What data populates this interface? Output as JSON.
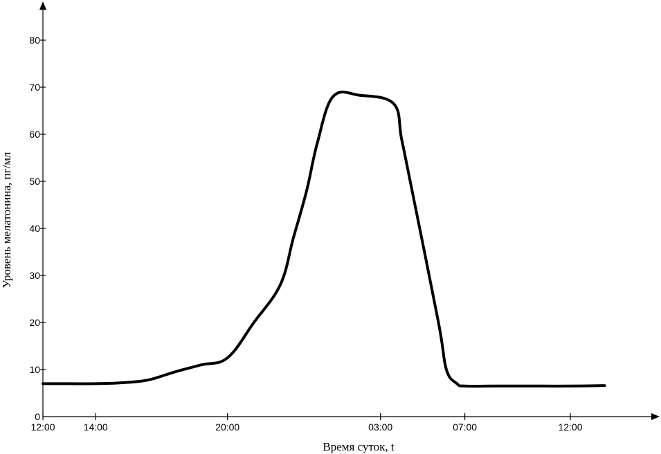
{
  "chart_data": {
    "type": "line",
    "title": "",
    "xlabel": "Время суток, t",
    "ylabel": "Уровень мелатонина, пг/мл",
    "x_ticks": [
      {
        "label": "12:00",
        "hours": 0
      },
      {
        "label": "14:00",
        "hours": 2
      },
      {
        "label": "20:00",
        "hours": 7
      },
      {
        "label": "03:00",
        "hours": 12.8
      },
      {
        "label": "07:00",
        "hours": 16
      },
      {
        "label": "12:00",
        "hours": 20
      }
    ],
    "y_ticks": [
      0,
      10,
      20,
      30,
      40,
      50,
      60,
      70,
      80
    ],
    "ylim": [
      0,
      88
    ],
    "xlim": [
      0,
      23.5
    ],
    "grid": false,
    "series": [
      {
        "x": [
          0,
          1,
          2,
          3,
          4,
          5,
          6,
          7,
          8,
          9,
          9.5,
          10,
          10.4,
          11,
          12,
          13.3,
          13.6,
          14,
          15,
          15.3,
          15.7,
          16,
          17,
          18,
          19,
          20,
          21.3
        ],
        "values": [
          7,
          7,
          7,
          7.2,
          7.8,
          9.5,
          11,
          12.5,
          20,
          28,
          38,
          48,
          58,
          68,
          68.3,
          66.5,
          59,
          48,
          20,
          10,
          7,
          6.5,
          6.5,
          6.5,
          6.5,
          6.5,
          6.6
        ]
      }
    ]
  }
}
